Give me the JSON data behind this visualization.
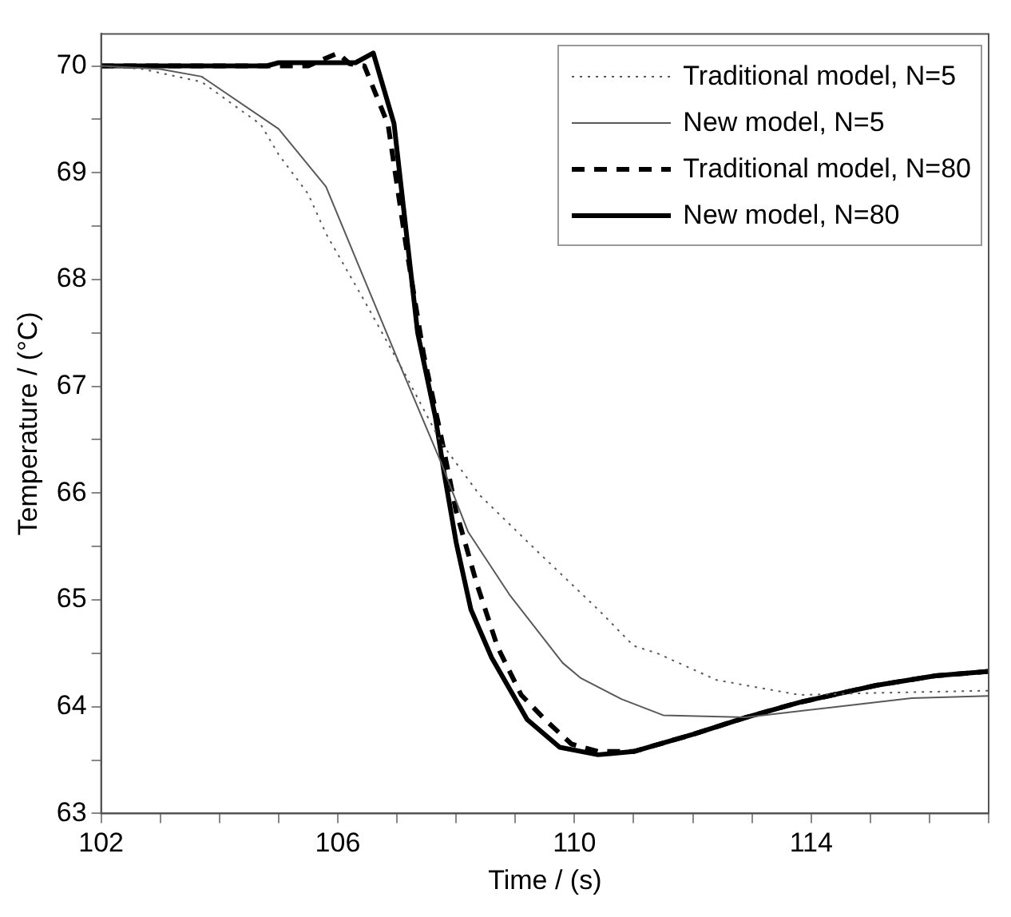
{
  "chart_data": {
    "type": "line",
    "xlabel": "Time / (s)",
    "ylabel": "Temperature / (°C)",
    "xlim": [
      102,
      117
    ],
    "ylim": [
      63,
      70.3
    ],
    "xticks": [
      102,
      {
        "value": 103,
        "label": null
      },
      {
        "value": 104,
        "label": null
      },
      {
        "value": 105,
        "label": null
      },
      106,
      {
        "value": 107,
        "label": null
      },
      {
        "value": 108,
        "label": null
      },
      {
        "value": 109,
        "label": null
      },
      110,
      {
        "value": 111,
        "label": null
      },
      {
        "value": 112,
        "label": null
      },
      {
        "value": 113,
        "label": null
      },
      114,
      {
        "value": 115,
        "label": null
      },
      {
        "value": 116,
        "label": null
      },
      {
        "value": 117,
        "label": null
      }
    ],
    "yticks": [
      63,
      {
        "value": 63.5,
        "label": null
      },
      64,
      {
        "value": 64.5,
        "label": null
      },
      65,
      {
        "value": 65.5,
        "label": null
      },
      66,
      {
        "value": 66.5,
        "label": null
      },
      67,
      {
        "value": 67.5,
        "label": null
      },
      68,
      {
        "value": 68.5,
        "label": null
      },
      69,
      {
        "value": 69.5,
        "label": null
      },
      70
    ],
    "grid": false,
    "legend": "top right",
    "marker": "none",
    "series": [
      {
        "name": "Traditional model, N=5",
        "color": "#595959",
        "line_style": "dotted",
        "x": [
          102,
          102.7,
          103.7,
          104.7,
          105,
          105.5,
          105.8,
          106.45,
          107.15,
          107.75,
          108.4,
          109.4,
          110.4,
          111,
          111.4,
          112.4,
          113.8,
          115.2,
          117
        ],
        "values": [
          70,
          69.97,
          69.85,
          69.45,
          69.17,
          68.8,
          68.43,
          67.8,
          67.1,
          66.47,
          65.98,
          65.44,
          64.91,
          64.57,
          64.5,
          64.25,
          64.11,
          64.13,
          64.15
        ]
      },
      {
        "name": "New model, N=5",
        "color": "#595959",
        "line_style": "solid",
        "x": [
          102,
          103,
          103.7,
          105,
          105.8,
          106.45,
          107.05,
          107.75,
          108.2,
          108.9,
          109.8,
          110.1,
          110.8,
          111.5,
          112.9,
          114.3,
          115.7,
          117
        ],
        "values": [
          70,
          69.97,
          69.9,
          69.41,
          68.87,
          68,
          67.2,
          66.28,
          65.64,
          65.05,
          64.41,
          64.27,
          64.07,
          63.92,
          63.9,
          63.99,
          64.08,
          64.1
        ]
      },
      {
        "name": "Traditional model, N=80",
        "color": "#000000",
        "line_style": "dashed",
        "x": [
          102,
          105.5,
          106,
          106.2,
          106.45,
          106.85,
          107.15,
          107.45,
          107.75,
          108,
          108.35,
          108.7,
          109.1,
          109.5,
          109.95,
          110.4,
          111,
          112,
          112.9,
          113.8,
          115.1,
          116.1,
          117
        ],
        "values": [
          70,
          70,
          70.12,
          70.02,
          70,
          69.45,
          68.33,
          67.3,
          66.52,
          65.83,
          65.15,
          64.56,
          64.11,
          63.88,
          63.65,
          63.58,
          63.58,
          63.74,
          63.9,
          64.04,
          64.2,
          64.29,
          64.33
        ]
      },
      {
        "name": "New model, N=80",
        "color": "#000000",
        "line_style": "solid",
        "x": [
          102,
          104.8,
          105,
          106.3,
          106.6,
          106.95,
          107.15,
          107.35,
          107.65,
          107.8,
          108,
          108.25,
          108.6,
          109.2,
          109.75,
          110.4,
          111,
          112,
          112.9,
          113.8,
          115.1,
          116.1,
          117
        ],
        "values": [
          70,
          70,
          70.03,
          70.03,
          70.12,
          69.46,
          68.48,
          67.5,
          66.71,
          66.18,
          65.54,
          64.91,
          64.46,
          63.88,
          63.62,
          63.55,
          63.58,
          63.74,
          63.9,
          64.04,
          64.2,
          64.29,
          64.33
        ]
      }
    ]
  }
}
